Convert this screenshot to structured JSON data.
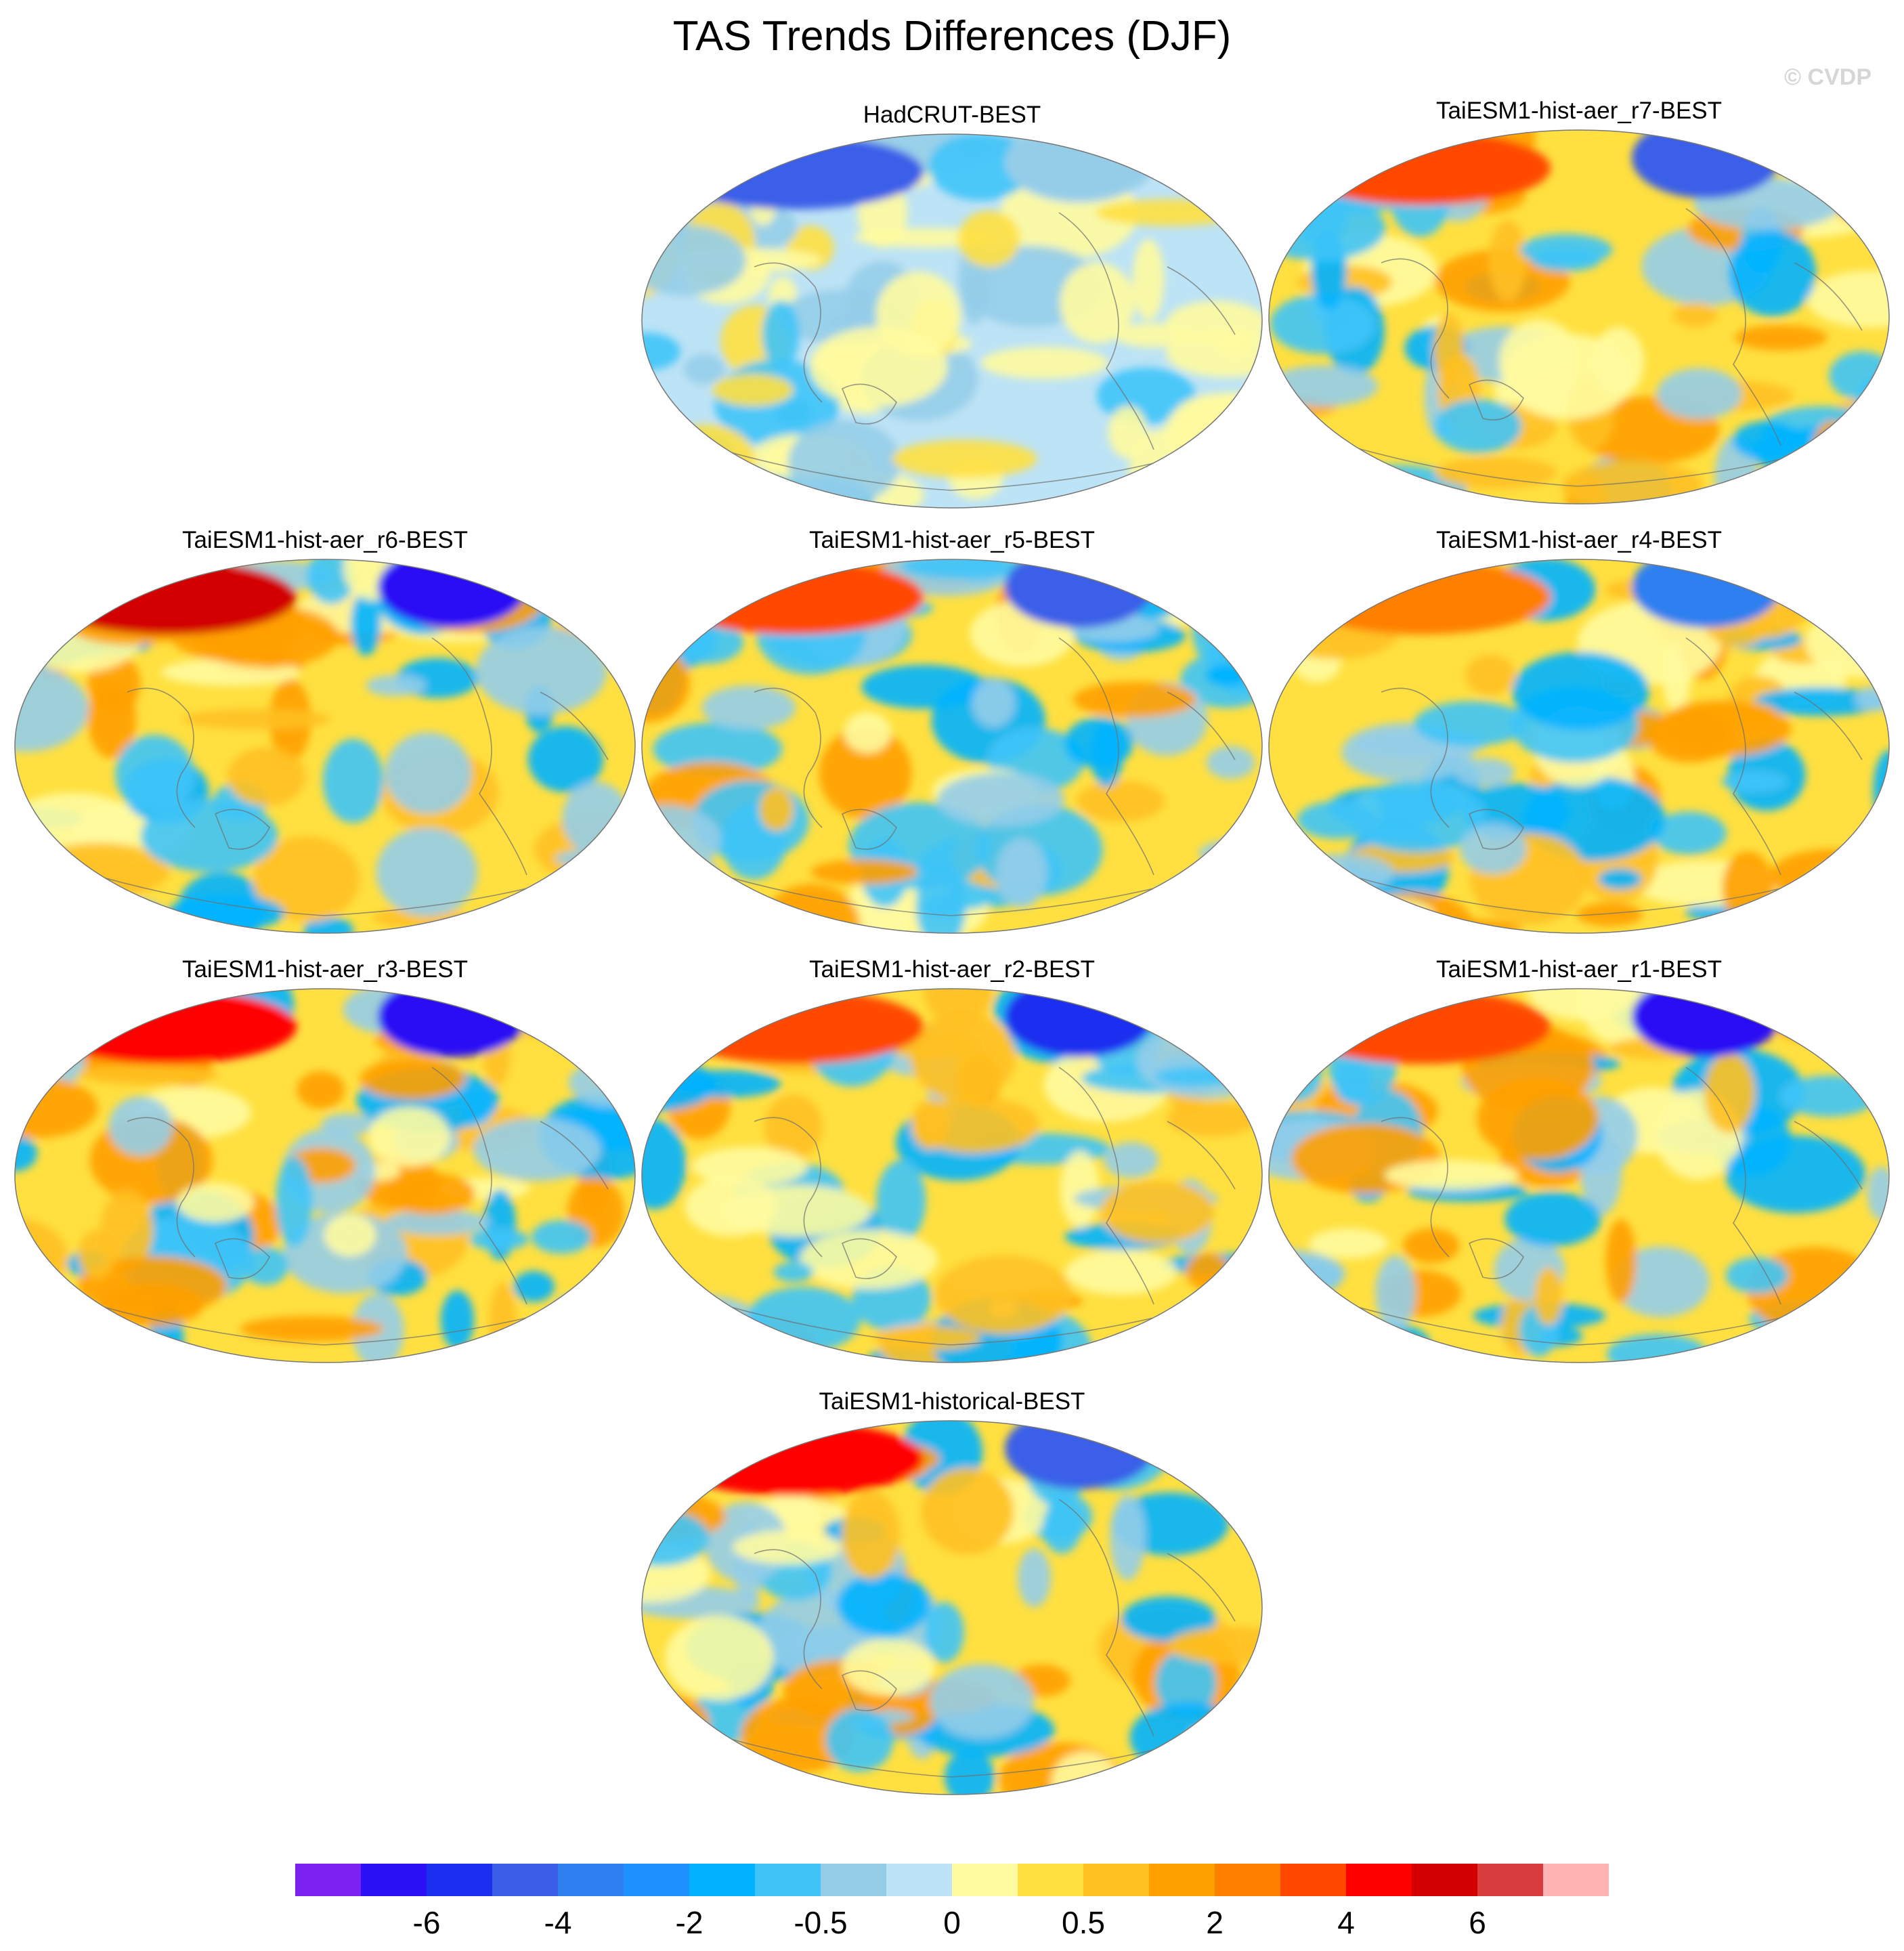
{
  "title": "TAS Trends Differences (DJF)",
  "copyright": "© CVDP",
  "panels": [
    {
      "title": "HadCRUT-BEST"
    },
    {
      "title": "TaiESM1-hist-aer_r7-BEST"
    },
    {
      "title": "TaiESM1-hist-aer_r6-BEST"
    },
    {
      "title": "TaiESM1-hist-aer_r5-BEST"
    },
    {
      "title": "TaiESM1-hist-aer_r4-BEST"
    },
    {
      "title": "TaiESM1-hist-aer_r3-BEST"
    },
    {
      "title": "TaiESM1-hist-aer_r2-BEST"
    },
    {
      "title": "TaiESM1-hist-aer_r1-BEST"
    },
    {
      "title": "TaiESM1-historical-BEST"
    }
  ],
  "colorbar": {
    "colors": [
      "#7b22f0",
      "#2a10f5",
      "#1a2ff0",
      "#3a5ee8",
      "#2f7ff0",
      "#1e90ff",
      "#00b2ff",
      "#3fc4f8",
      "#95cde9",
      "#bde3f6",
      "#fffba0",
      "#ffe040",
      "#ffc021",
      "#ffa000",
      "#ff7f00",
      "#ff4800",
      "#ff0000",
      "#d20000",
      "#d83c3c",
      "#ffb3b3"
    ],
    "labels": [
      "-6",
      "-4",
      "-2",
      "-0.5",
      "0",
      "0.5",
      "2",
      "4",
      "6"
    ]
  }
}
